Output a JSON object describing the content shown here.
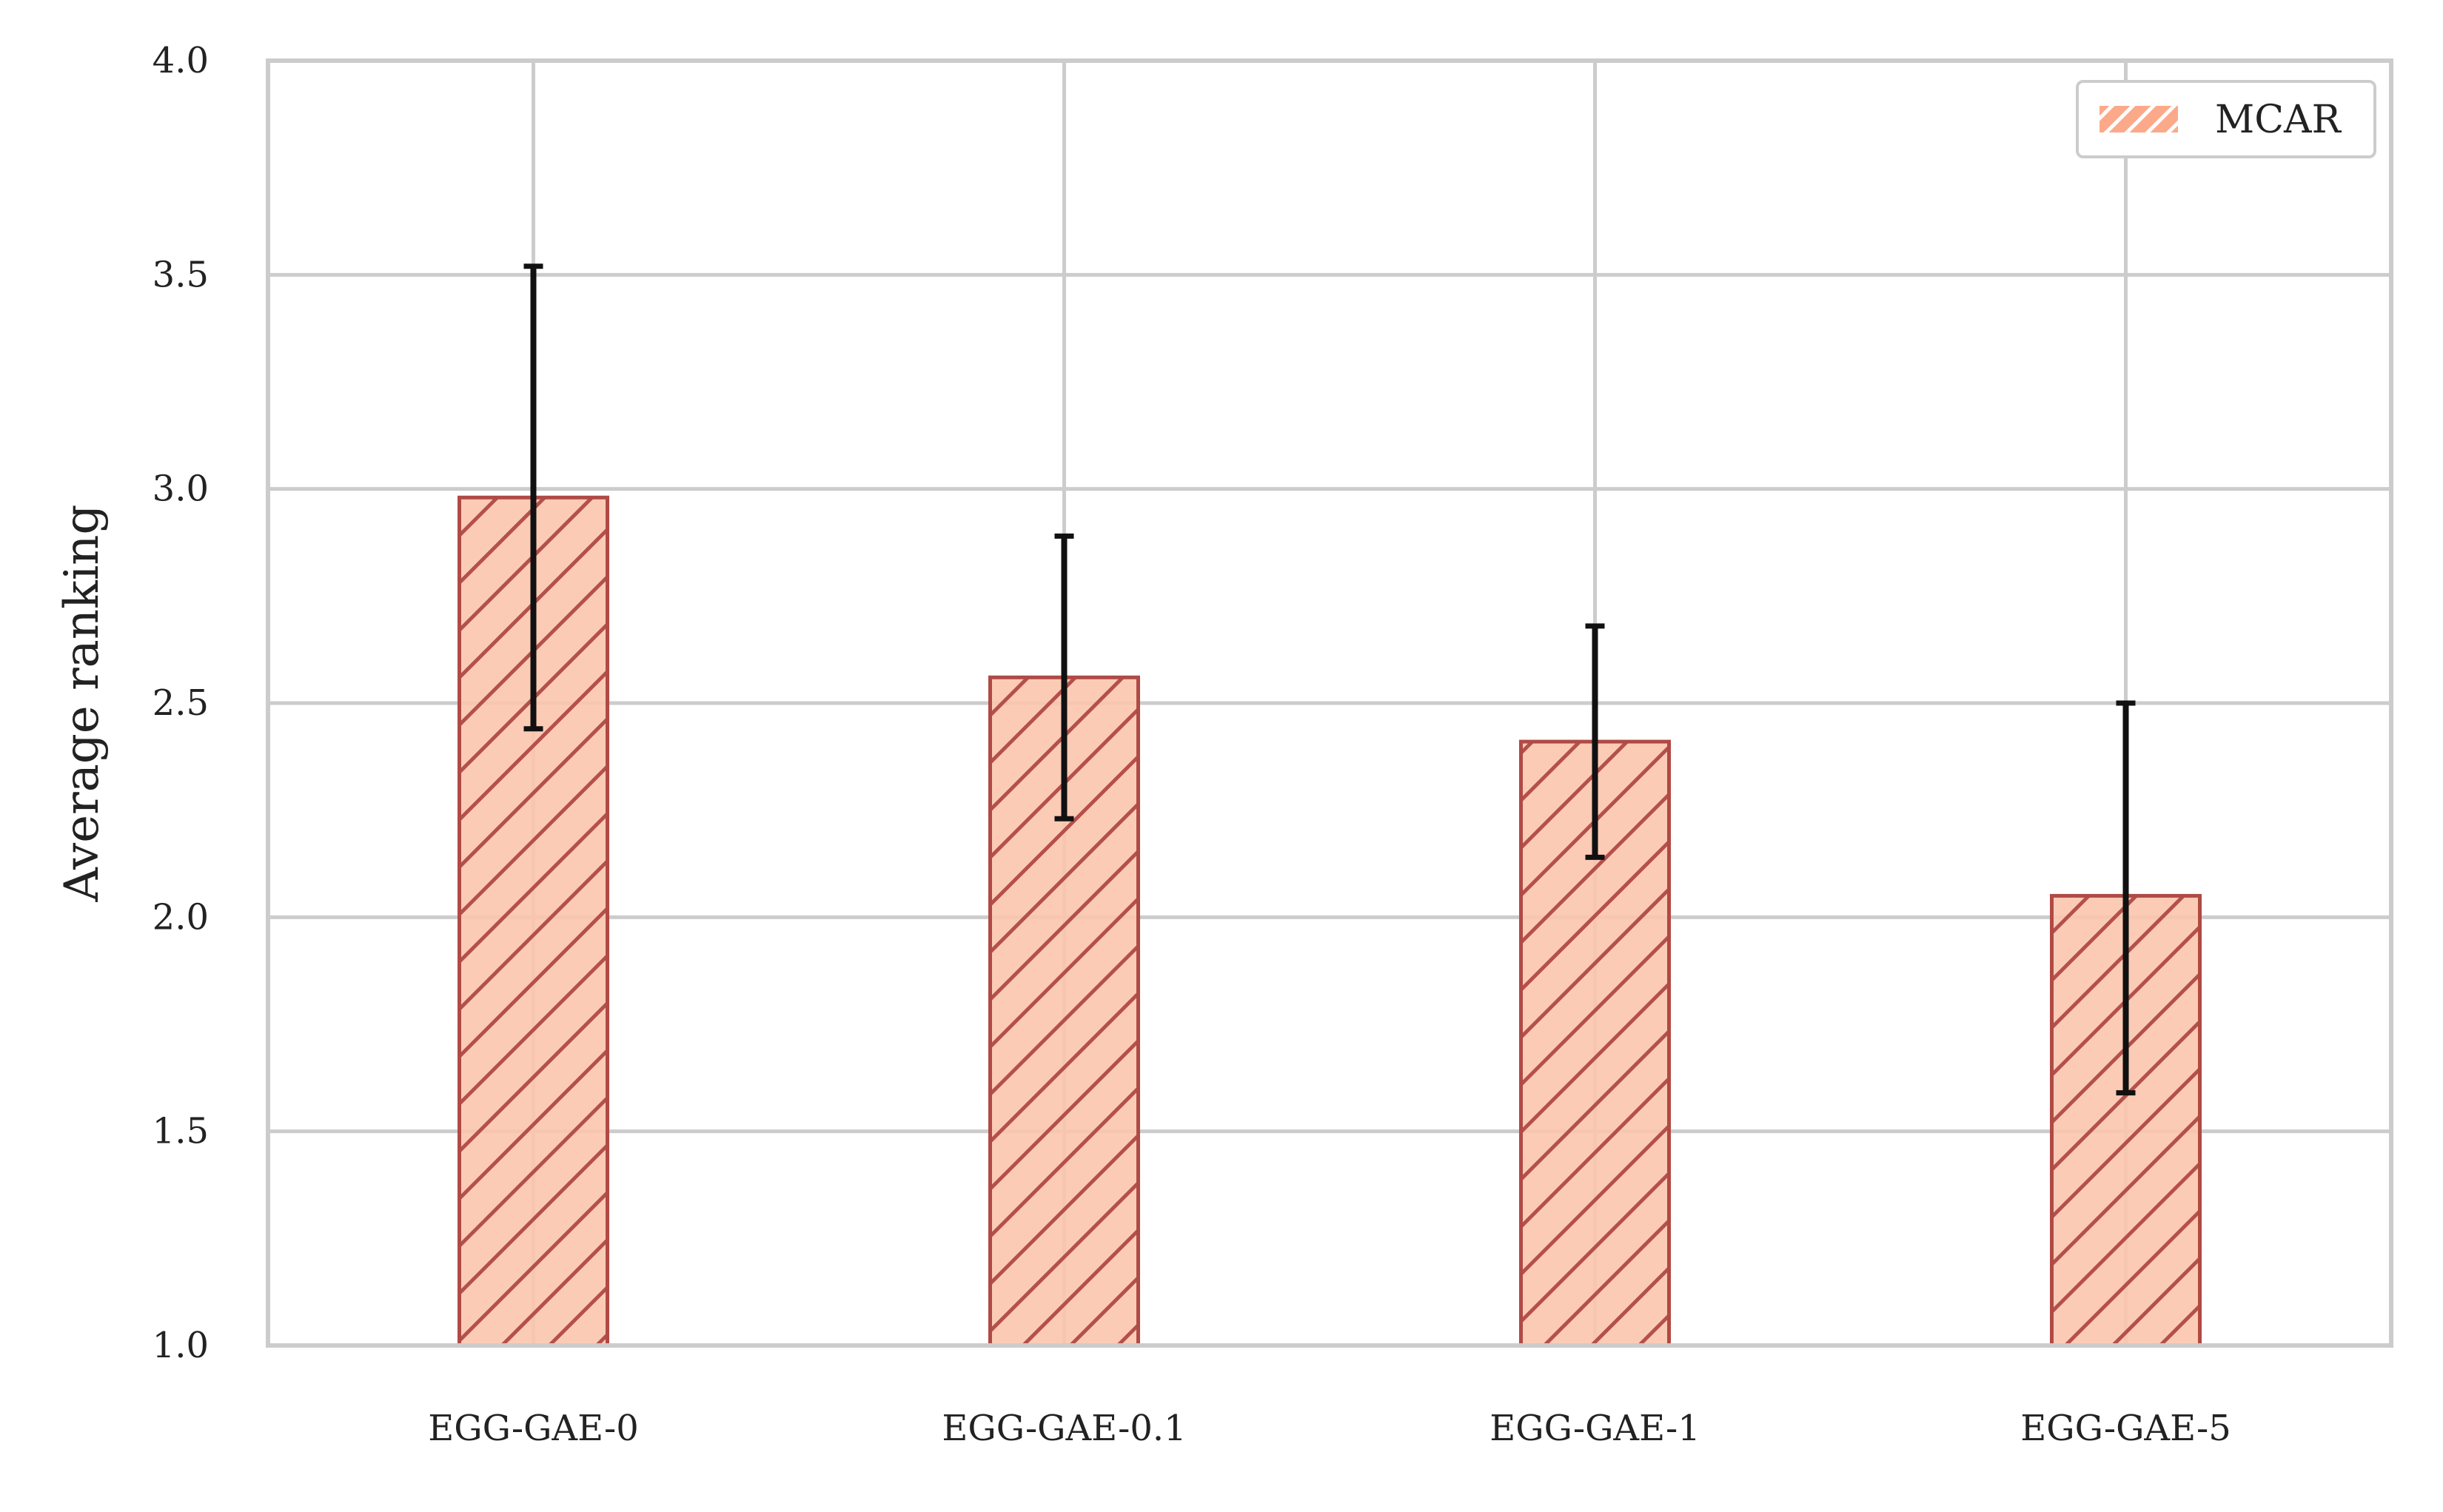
{
  "chart_data": {
    "type": "bar",
    "categories": [
      "EGG-GAE-0",
      "EGG-GAE-0.1",
      "EGG-GAE-1",
      "EGG-GAE-5"
    ],
    "series": [
      {
        "name": "MCAR",
        "values": [
          2.98,
          2.56,
          2.41,
          2.05
        ],
        "error_low": [
          2.44,
          2.23,
          2.14,
          1.59
        ],
        "error_high": [
          3.52,
          2.89,
          2.68,
          2.5
        ]
      }
    ],
    "xlabel": "",
    "ylabel": "Average ranking",
    "ylim": [
      1.0,
      4.0
    ],
    "yticks": [
      1.0,
      1.5,
      2.0,
      2.5,
      3.0,
      3.5,
      4.0
    ],
    "ytick_labels": [
      "1.0",
      "1.5",
      "2.0",
      "2.5",
      "3.0",
      "3.5",
      "4.0"
    ],
    "grid": true,
    "legend_position": "top-right",
    "colors": {
      "bar_fill": "#fcc5ae",
      "bar_edge": "#b04a45",
      "hatch": "#b04a45",
      "error_bar": "#111111",
      "grid": "#cccccc",
      "frame": "#cccccc",
      "legend_patch": "#fca98a"
    }
  }
}
